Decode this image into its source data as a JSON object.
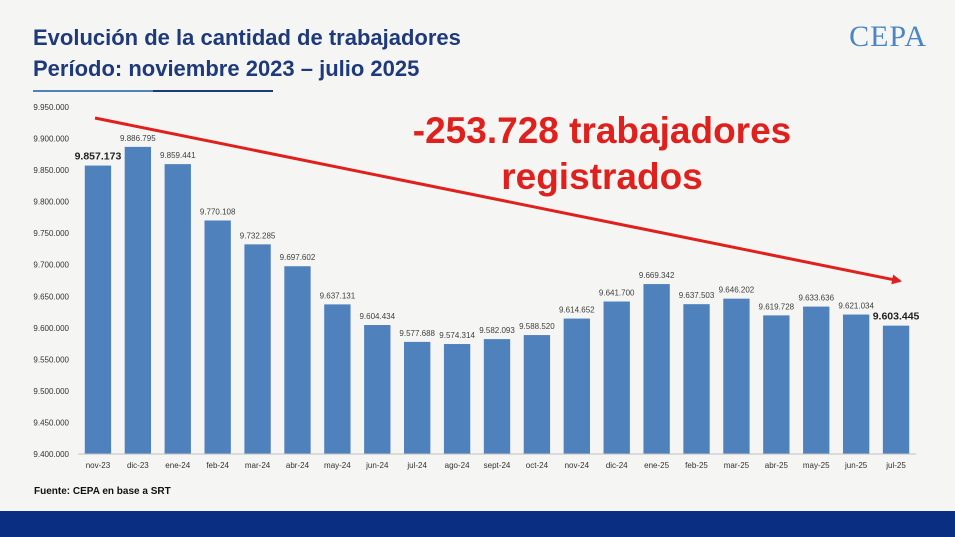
{
  "header": {
    "title_line1": "Evolución de la cantidad de trabajadores",
    "title_line2": "Período: noviembre 2023 – julio 2025"
  },
  "logo": {
    "text": "CEPA"
  },
  "annotation": {
    "line1": "-253.728 trabajadores",
    "line2": "registrados"
  },
  "source": "Fuente: CEPA en base a SRT",
  "colors": {
    "bar": "#4f81bd",
    "title": "#1f3a7a",
    "arrow": "#e0201c",
    "footer": "#0a2e82"
  },
  "chart_data": {
    "type": "bar",
    "categories": [
      "nov-23",
      "dic-23",
      "ene-24",
      "feb-24",
      "mar-24",
      "abr-24",
      "may-24",
      "jun-24",
      "jul-24",
      "ago-24",
      "sept-24",
      "oct-24",
      "nov-24",
      "dic-24",
      "ene-25",
      "feb-25",
      "mar-25",
      "abr-25",
      "may-25",
      "jun-25",
      "jul-25"
    ],
    "values": [
      9857173,
      9886795,
      9859441,
      9770108,
      9732285,
      9697602,
      9637131,
      9604434,
      9577688,
      9574314,
      9582093,
      9588520,
      9614652,
      9641700,
      9669342,
      9637503,
      9646202,
      9619728,
      9633636,
      9621034,
      9603445
    ],
    "value_labels": [
      "9.857.173",
      "9.886.795",
      "9.859.441",
      "9.770.108",
      "9.732.285",
      "9.697.602",
      "9.637.131",
      "9.604.434",
      "9.577.688",
      "9.574.314",
      "9.582.093",
      "9.588.520",
      "9.614.652",
      "9.641.700",
      "9.669.342",
      "9.637.503",
      "9.646.202",
      "9.619.728",
      "9.633.636",
      "9.621.034",
      "9.603.445"
    ],
    "bold_labels": [
      0,
      20
    ],
    "ylim": [
      9400000,
      9950000
    ],
    "yticks": [
      9400000,
      9450000,
      9500000,
      9550000,
      9600000,
      9650000,
      9700000,
      9750000,
      9800000,
      9850000,
      9900000,
      9950000
    ],
    "ytick_labels": [
      "9.400.000",
      "9.450.000",
      "9.500.000",
      "9.550.000",
      "9.600.000",
      "9.650.000",
      "9.700.000",
      "9.750.000",
      "9.800.000",
      "9.850.000",
      "9.900.000",
      "9.950.000"
    ],
    "grid": false,
    "title": "Evolución de la cantidad de trabajadores",
    "xlabel": "",
    "ylabel": ""
  }
}
